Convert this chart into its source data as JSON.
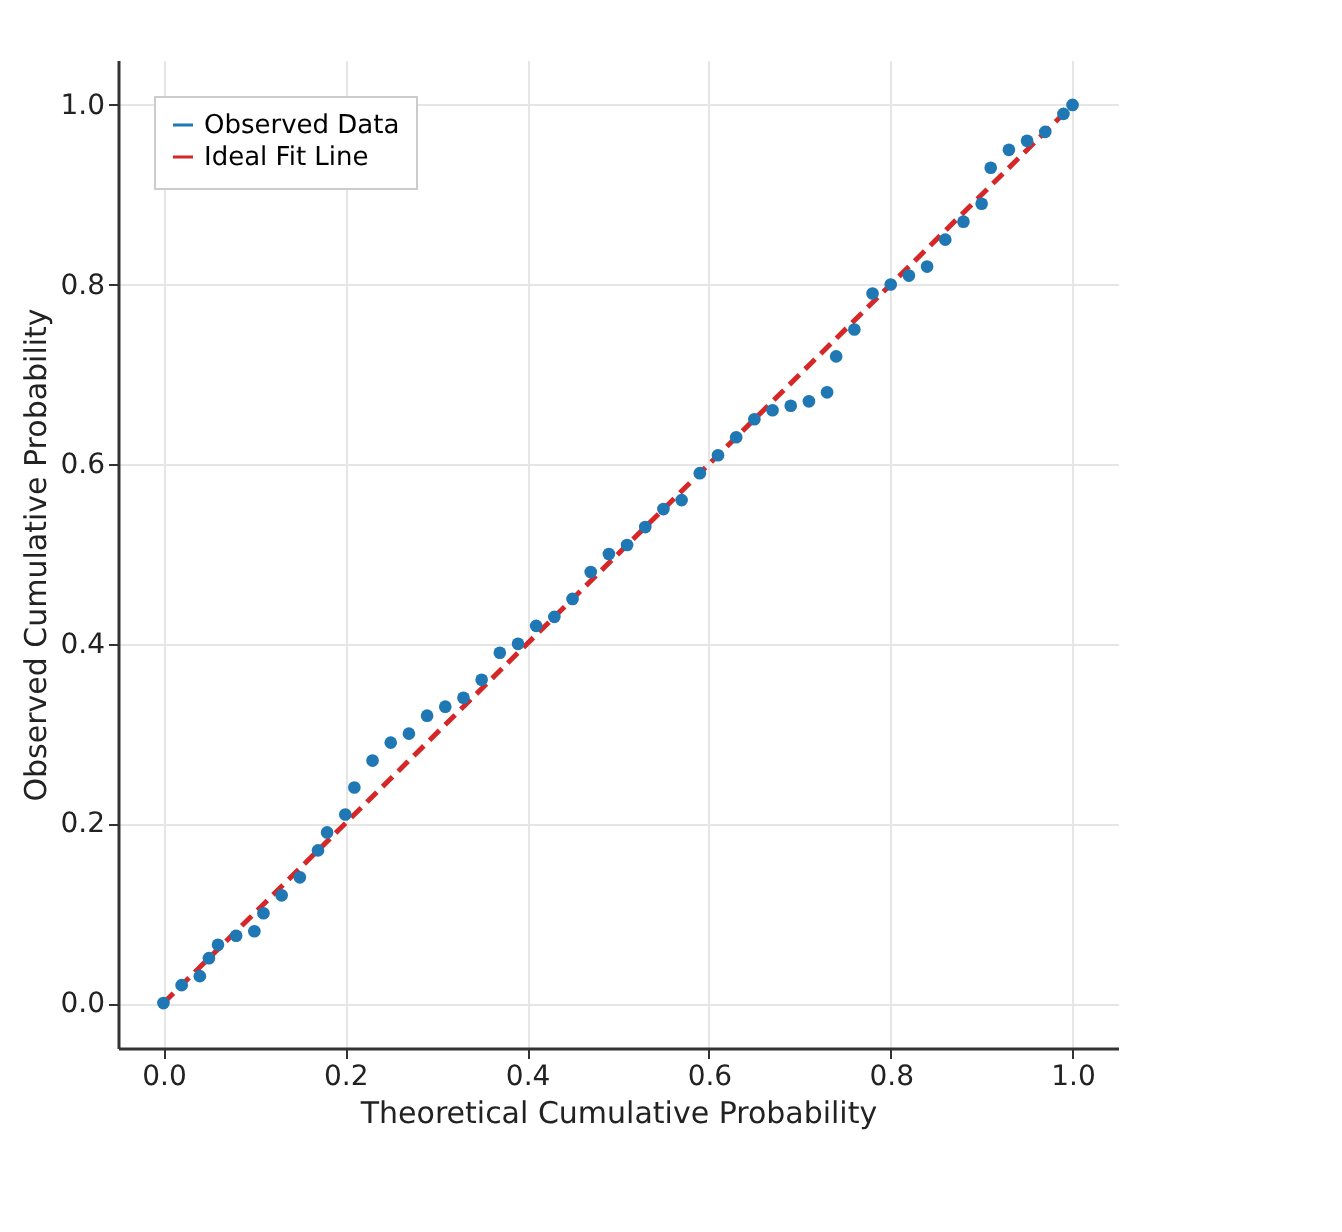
{
  "chart_data": {
    "type": "scatter",
    "xlabel": "Theoretical Cumulative Probability",
    "ylabel": "Observed Cumulative Probability",
    "xlim": [
      -0.05,
      1.05
    ],
    "ylim": [
      -0.05,
      1.05
    ],
    "xticks": [
      {
        "value": 0,
        "label": "0.0"
      },
      {
        "value": 0.2,
        "label": "0.2"
      },
      {
        "value": 0.4,
        "label": "0.4"
      },
      {
        "value": 0.6,
        "label": "0.6"
      },
      {
        "value": 0.8,
        "label": "0.8"
      },
      {
        "value": 1,
        "label": "1.0"
      }
    ],
    "yticks": [
      {
        "value": 0,
        "label": "0.0"
      },
      {
        "value": 0.2,
        "label": "0.2"
      },
      {
        "value": 0.4,
        "label": "0.4"
      },
      {
        "value": 0.6,
        "label": "0.6"
      },
      {
        "value": 0.8,
        "label": "0.8"
      },
      {
        "value": 1,
        "label": "1.0"
      }
    ],
    "grid": true,
    "legend": "top left",
    "series": [
      {
        "name": "Observed Data",
        "type": "scatter",
        "color": "#1f77b4",
        "marker": "circle",
        "x": [
          0,
          0.02,
          0.04,
          0.05,
          0.06,
          0.08,
          0.1,
          0.11,
          0.13,
          0.15,
          0.17,
          0.18,
          0.2,
          0.21,
          0.23,
          0.25,
          0.27,
          0.29,
          0.31,
          0.33,
          0.35,
          0.37,
          0.39,
          0.41,
          0.43,
          0.45,
          0.47,
          0.49,
          0.51,
          0.53,
          0.55,
          0.57,
          0.59,
          0.61,
          0.63,
          0.65,
          0.67,
          0.69,
          0.71,
          0.73,
          0.74,
          0.76,
          0.78,
          0.8,
          0.82,
          0.84,
          0.86,
          0.88,
          0.9,
          0.91,
          0.93,
          0.95,
          0.97,
          0.99,
          1.0
        ],
        "values": [
          0,
          0.02,
          0.03,
          0.05,
          0.065,
          0.075,
          0.08,
          0.1,
          0.12,
          0.14,
          0.17,
          0.19,
          0.21,
          0.24,
          0.27,
          0.29,
          0.3,
          0.32,
          0.33,
          0.34,
          0.36,
          0.39,
          0.4,
          0.42,
          0.43,
          0.45,
          0.48,
          0.5,
          0.51,
          0.53,
          0.55,
          0.56,
          0.59,
          0.61,
          0.63,
          0.65,
          0.66,
          0.665,
          0.67,
          0.68,
          0.72,
          0.75,
          0.79,
          0.8,
          0.81,
          0.82,
          0.85,
          0.87,
          0.89,
          0.93,
          0.95,
          0.96,
          0.97,
          0.99,
          1.0
        ]
      },
      {
        "name": "Ideal Fit Line",
        "type": "line",
        "color": "#d62728",
        "line_style": "dashed",
        "x": [
          0,
          1
        ],
        "values": [
          0,
          1
        ]
      }
    ]
  }
}
